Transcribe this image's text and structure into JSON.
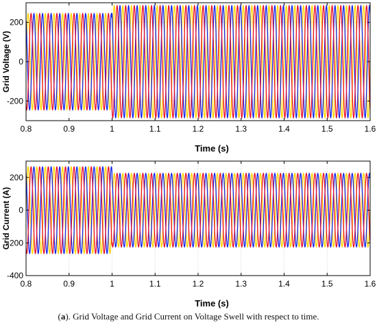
{
  "chart_data": [
    {
      "type": "line",
      "ylabel": "Grid Voltage (V)",
      "xlabel": "Time (s)",
      "xlim": [
        0.8,
        1.6
      ],
      "ylim": [
        -300,
        300
      ],
      "xticks": [
        "0.8",
        "0.9",
        "1",
        "1.1",
        "1.2",
        "1.3",
        "1.4",
        "1.5",
        "1.6"
      ],
      "yticks": [
        "200",
        "0",
        "-200"
      ],
      "ytick_values": [
        200,
        0,
        -200
      ],
      "grid": true,
      "frequency_hz": 50,
      "series": [
        {
          "phase_deg": 0,
          "color": "#ffd200"
        },
        {
          "phase_deg": -120,
          "color": "#e8102a"
        },
        {
          "phase_deg": 120,
          "color": "#1525e6"
        }
      ],
      "amplitude_segments": [
        {
          "t_start": 0.8,
          "t_end": 1.0,
          "amplitude": 245
        },
        {
          "t_start": 1.0,
          "t_end": 1.6,
          "amplitude": 285
        }
      ]
    },
    {
      "type": "line",
      "ylabel": "Grid Current (A)",
      "xlabel": "Time (s)",
      "xlim": [
        0.8,
        1.6
      ],
      "ylim": [
        -400,
        300
      ],
      "xticks": [
        "0.8",
        "0.9",
        "1",
        "1.1",
        "1.2",
        "1.3",
        "1.4",
        "1.5",
        "1.6"
      ],
      "yticks": [
        "200",
        "0",
        "-200",
        "-400"
      ],
      "ytick_values": [
        200,
        0,
        -200,
        -400
      ],
      "grid": true,
      "frequency_hz": 50,
      "series": [
        {
          "phase_deg": 0,
          "color": "#ffd200"
        },
        {
          "phase_deg": -120,
          "color": "#e8102a"
        },
        {
          "phase_deg": 120,
          "color": "#1525e6"
        }
      ],
      "amplitude_segments": [
        {
          "t_start": 0.8,
          "t_end": 1.0,
          "amplitude": 265
        },
        {
          "t_start": 1.0,
          "t_end": 1.6,
          "amplitude": 225
        }
      ]
    }
  ],
  "caption": {
    "label": "a",
    "text": ". Grid Voltage and Grid Current on Voltage Swell with respect to time."
  }
}
